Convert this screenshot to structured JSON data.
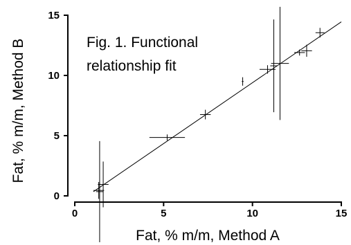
{
  "chart_data": {
    "type": "scatter",
    "annotation_lines": [
      "Fig. 1. Functional",
      "relationship fit"
    ],
    "xlabel": "Fat, % m/m, Method A",
    "ylabel": "Fat, % m/m, Method B",
    "xlim": [
      0,
      15
    ],
    "ylim": [
      0,
      15
    ],
    "xticks": [
      0,
      5,
      10,
      15
    ],
    "yticks": [
      0,
      5,
      10,
      15
    ],
    "grid": false,
    "points": [
      {
        "x": 1.35,
        "y": 0.45,
        "xerr": 0.3,
        "yerr": 0.7
      },
      {
        "x": 1.4,
        "y": 0.35,
        "xerr": 0.2,
        "yerr": 4.2
      },
      {
        "x": 1.6,
        "y": 0.95,
        "xerr": 0.3,
        "yerr": 1.9
      },
      {
        "x": 5.2,
        "y": 4.85,
        "xerr": 1.0,
        "yerr": 0.25
      },
      {
        "x": 7.35,
        "y": 6.75,
        "xerr": 0.3,
        "yerr": 0.4
      },
      {
        "x": 9.45,
        "y": 9.5,
        "xerr": 0.05,
        "yerr": 0.35
      },
      {
        "x": 10.85,
        "y": 10.5,
        "xerr": 0.45,
        "yerr": 0.35
      },
      {
        "x": 11.2,
        "y": 10.8,
        "xerr": 0.2,
        "yerr": 3.85
      },
      {
        "x": 11.55,
        "y": 11.0,
        "xerr": 0.5,
        "yerr": 4.7
      },
      {
        "x": 12.65,
        "y": 11.9,
        "xerr": 0.3,
        "yerr": 0.25
      },
      {
        "x": 13.05,
        "y": 12.05,
        "xerr": 0.3,
        "yerr": 0.5
      },
      {
        "x": 13.8,
        "y": 13.55,
        "xerr": 0.25,
        "yerr": 0.4
      }
    ],
    "fit_line": {
      "x": [
        1.05,
        15.0
      ],
      "y": [
        0.35,
        14.45
      ]
    }
  }
}
